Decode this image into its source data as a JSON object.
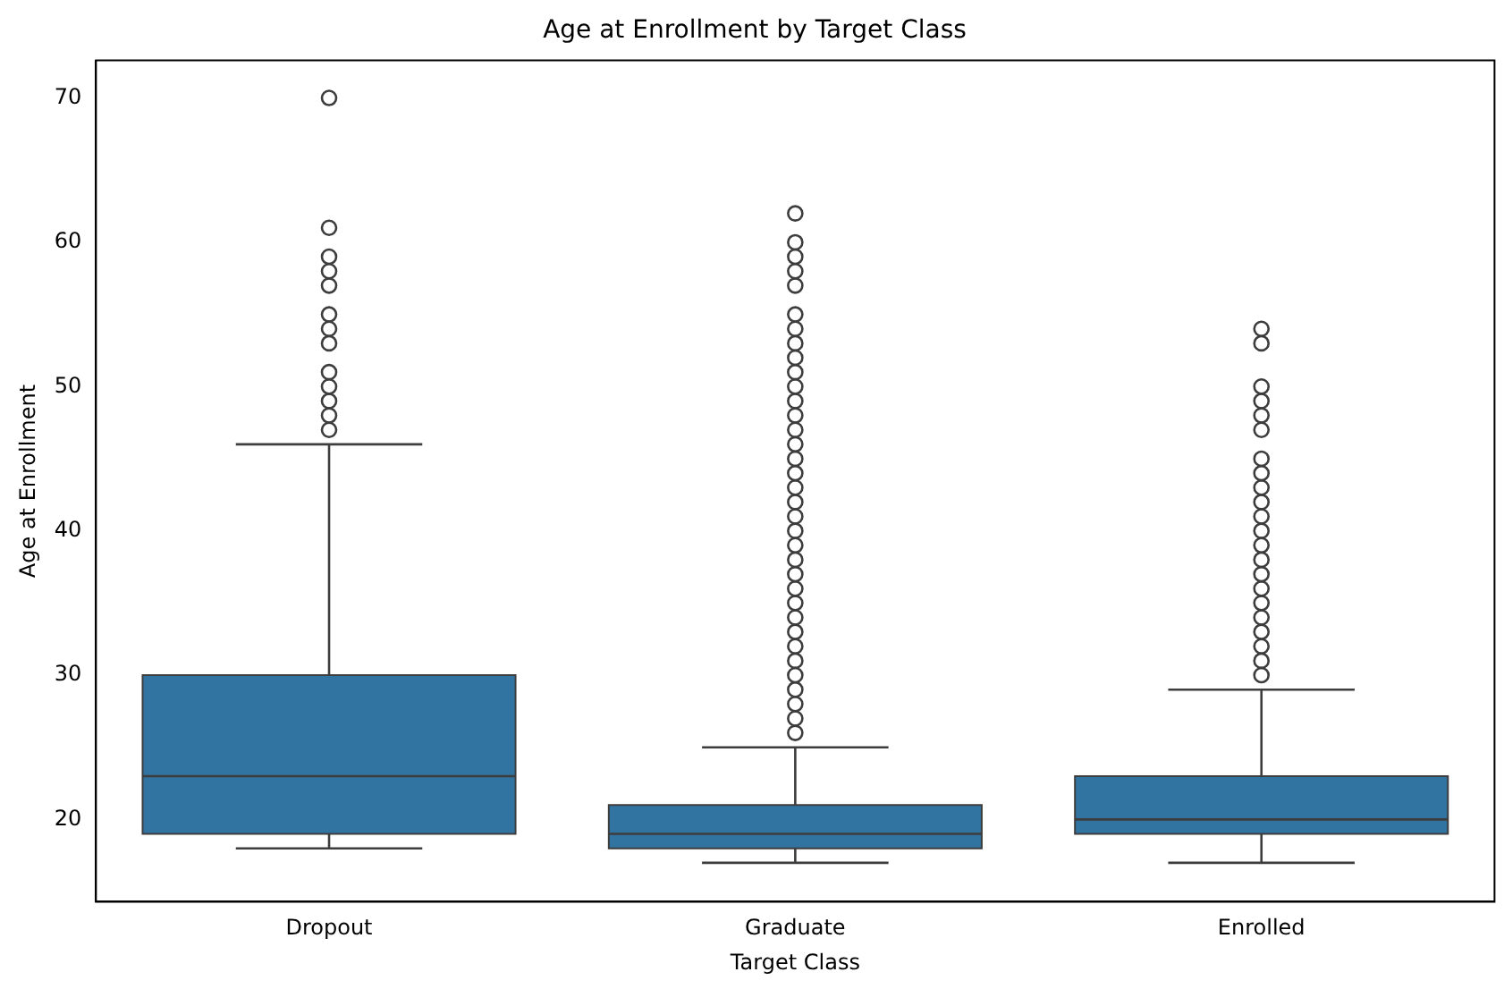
{
  "chart_data": {
    "type": "box",
    "title": "Age at Enrollment by Target Class",
    "xlabel": "Target Class",
    "ylabel": "Age at Enrollment",
    "categories": [
      "Dropout",
      "Graduate",
      "Enrolled"
    ],
    "color": "#3274a1",
    "boxes": [
      {
        "low": 18,
        "q1": 19,
        "median": 23,
        "q3": 30,
        "high": 46,
        "outliers": [
          47,
          48,
          49,
          50,
          51,
          53,
          54,
          55,
          57,
          58,
          59,
          61,
          70
        ]
      },
      {
        "low": 17,
        "q1": 18,
        "median": 19,
        "q3": 21,
        "high": 25,
        "outliers": [
          26,
          27,
          28,
          29,
          30,
          31,
          32,
          33,
          34,
          35,
          36,
          37,
          38,
          39,
          40,
          41,
          42,
          43,
          44,
          45,
          46,
          47,
          48,
          49,
          50,
          51,
          52,
          53,
          54,
          55,
          57,
          58,
          59,
          60,
          62
        ]
      },
      {
        "low": 17,
        "q1": 19,
        "median": 20,
        "q3": 23,
        "high": 29,
        "outliers": [
          30,
          31,
          32,
          33,
          34,
          35,
          36,
          37,
          38,
          39,
          40,
          41,
          42,
          43,
          44,
          45,
          47,
          48,
          49,
          50,
          53,
          54
        ]
      }
    ],
    "ylim": [
      14.3,
      72.6
    ],
    "yticks": [
      20,
      30,
      40,
      50,
      60,
      70
    ],
    "grid": false,
    "legend": false
  }
}
